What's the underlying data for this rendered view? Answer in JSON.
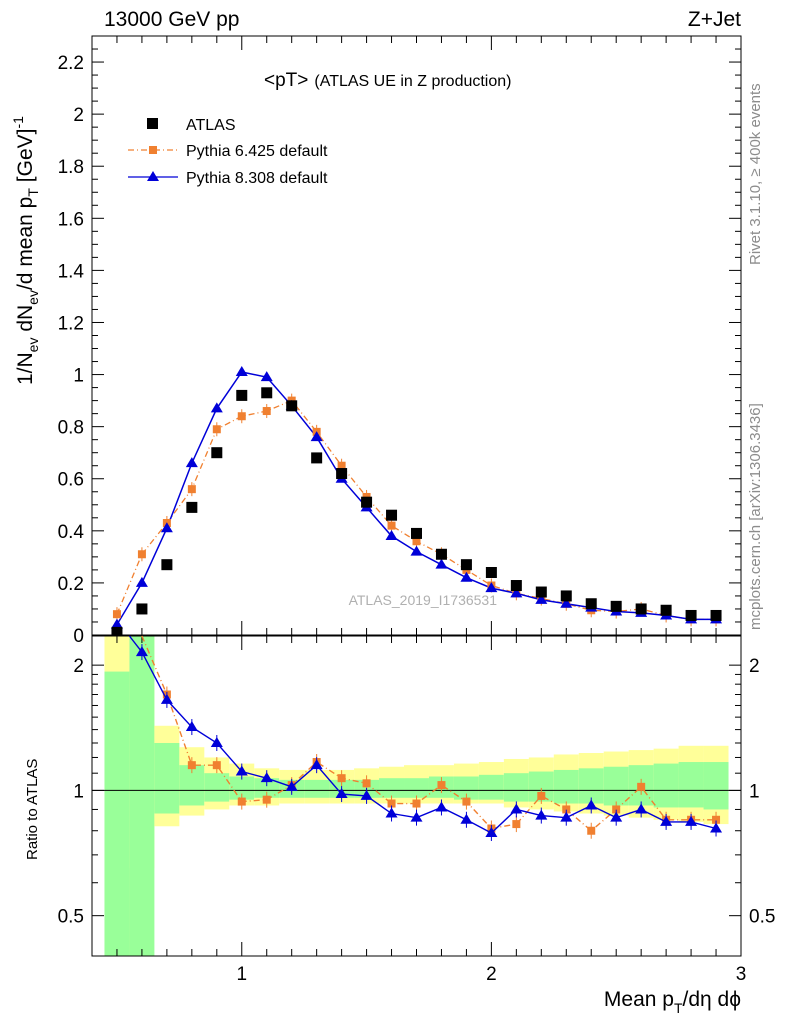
{
  "header": {
    "left": "13000 GeV pp",
    "right": "Z+Jet"
  },
  "plot_title": {
    "main": "<pT>",
    "sub": "(ATLAS UE in Z production)"
  },
  "side_labels": {
    "rivet": "Rivet 3.1.10, ≥ 400k events",
    "mcplots": "mcplots.cern.ch [arXiv:1306.3436]"
  },
  "watermark": "ATLAS_2019_I1736531",
  "axes": {
    "y_main_label": "1/N",
    "y_main_label_sub_ev": "ev",
    "y_main_label_mid": " dN",
    "y_main_label_mid2": "/d mean p",
    "y_main_label_sub_t": "T",
    "y_main_label_unit": " [GeV]",
    "y_main_label_sup": "-1",
    "y_ratio_label": "Ratio to ATLAS",
    "x_label_a": "Mean p",
    "x_label_sub": "T",
    "x_label_b": "/dη dϕ"
  },
  "colors": {
    "atlas": "#000000",
    "py6": "#f08030",
    "py8": "#0000d8",
    "band_inner": "#99ff99",
    "band_outer": "#ffff99"
  },
  "chart_data": {
    "type": "scatter",
    "x_range": [
      0.4,
      3.0
    ],
    "main": {
      "y_range": [
        0,
        2.3
      ],
      "y_ticks": [
        {
          "v": 0,
          "label": "0"
        },
        {
          "v": 0.2,
          "label": "0.2"
        },
        {
          "v": 0.4,
          "label": "0.4"
        },
        {
          "v": 0.6,
          "label": "0.6"
        },
        {
          "v": 0.8,
          "label": "0.8"
        },
        {
          "v": 1.0,
          "label": "1"
        },
        {
          "v": 1.2,
          "label": "1.2"
        },
        {
          "v": 1.4,
          "label": "1.4"
        },
        {
          "v": 1.6,
          "label": "1.6"
        },
        {
          "v": 1.8,
          "label": "1.8"
        },
        {
          "v": 2.0,
          "label": "2"
        },
        {
          "v": 2.2,
          "label": "2.2"
        }
      ]
    },
    "ratio": {
      "y_range": [
        0.4,
        2.35
      ],
      "log": true,
      "y_ticks": [
        {
          "v": 0.5,
          "label": "0.5"
        },
        {
          "v": 1,
          "label": "1"
        },
        {
          "v": 2,
          "label": "2"
        }
      ]
    },
    "x_ticks": [
      {
        "v": 1,
        "label": "1"
      },
      {
        "v": 2,
        "label": "2"
      },
      {
        "v": 3,
        "label": "3"
      }
    ],
    "series": [
      {
        "name": "ATLAS",
        "x": [
          0.5,
          0.6,
          0.7,
          0.8,
          0.9,
          1.0,
          1.1,
          1.2,
          1.3,
          1.4,
          1.5,
          1.6,
          1.7,
          1.8,
          1.9,
          2.0,
          2.1,
          2.2,
          2.3,
          2.4,
          2.5,
          2.6,
          2.7,
          2.8,
          2.9
        ],
        "y": [
          0.01,
          0.1,
          0.27,
          0.49,
          0.7,
          0.92,
          0.93,
          0.88,
          0.68,
          0.62,
          0.51,
          0.46,
          0.39,
          0.31,
          0.27,
          0.24,
          0.19,
          0.165,
          0.15,
          0.12,
          0.11,
          0.1,
          0.095,
          0.075,
          0.075
        ]
      },
      {
        "name": "Pythia 6.425 default",
        "x": [
          0.5,
          0.6,
          0.7,
          0.8,
          0.9,
          1.0,
          1.1,
          1.2,
          1.3,
          1.4,
          1.5,
          1.6,
          1.7,
          1.8,
          1.9,
          2.0,
          2.1,
          2.2,
          2.3,
          2.4,
          2.5,
          2.6,
          2.7,
          2.8,
          2.9
        ],
        "y": [
          0.08,
          0.31,
          0.43,
          0.56,
          0.79,
          0.84,
          0.86,
          0.9,
          0.78,
          0.65,
          0.53,
          0.42,
          0.36,
          0.31,
          0.25,
          0.19,
          0.16,
          0.14,
          0.12,
          0.095,
          0.09,
          0.1,
          0.075,
          0.06,
          0.06
        ]
      },
      {
        "name": "Pythia 8.308 default",
        "x": [
          0.5,
          0.6,
          0.7,
          0.8,
          0.9,
          1.0,
          1.1,
          1.2,
          1.3,
          1.4,
          1.5,
          1.6,
          1.7,
          1.8,
          1.9,
          2.0,
          2.1,
          2.2,
          2.3,
          2.4,
          2.5,
          2.6,
          2.7,
          2.8,
          2.9
        ],
        "y": [
          0.04,
          0.2,
          0.41,
          0.66,
          0.87,
          1.01,
          0.99,
          0.88,
          0.76,
          0.6,
          0.49,
          0.38,
          0.32,
          0.27,
          0.22,
          0.18,
          0.16,
          0.135,
          0.12,
          0.105,
          0.09,
          0.085,
          0.075,
          0.06,
          0.06
        ]
      }
    ],
    "ratios": [
      {
        "name": "Pythia 6.425 default",
        "y": [
          null,
          null,
          1.7,
          1.15,
          1.15,
          0.94,
          0.95,
          1.03,
          1.17,
          1.07,
          1.04,
          0.93,
          0.93,
          1.03,
          0.94,
          0.81,
          0.83,
          0.97,
          0.9,
          0.8,
          0.9,
          1.02,
          0.85,
          0.85,
          0.85
        ]
      },
      {
        "name": "Pythia 8.308 default",
        "y": [
          null,
          2.15,
          1.65,
          1.42,
          1.3,
          1.11,
          1.07,
          1.02,
          1.15,
          0.98,
          0.97,
          0.88,
          0.86,
          0.91,
          0.85,
          0.79,
          0.9,
          0.87,
          0.86,
          0.92,
          0.86,
          0.9,
          0.84,
          0.84,
          0.81
        ]
      }
    ],
    "bands": {
      "x_edges": [
        0.45,
        0.55,
        0.65,
        0.75,
        0.85,
        0.95,
        1.05,
        1.15,
        1.25,
        1.35,
        1.45,
        1.55,
        1.65,
        1.75,
        1.85,
        1.95,
        2.05,
        2.15,
        2.25,
        2.35,
        2.45,
        2.55,
        2.65,
        2.75,
        2.85,
        2.95
      ],
      "outer_lo": [
        0.4,
        0.65,
        0.82,
        0.87,
        0.9,
        0.92,
        0.92,
        0.93,
        0.93,
        0.93,
        0.93,
        0.93,
        0.93,
        0.93,
        0.93,
        0.93,
        0.91,
        0.9,
        0.89,
        0.88,
        0.87,
        0.86,
        0.85,
        0.84,
        0.83
      ],
      "outer_hi": [
        2.35,
        2.35,
        1.43,
        1.27,
        1.2,
        1.16,
        1.13,
        1.12,
        1.12,
        1.12,
        1.13,
        1.14,
        1.15,
        1.15,
        1.16,
        1.17,
        1.19,
        1.2,
        1.22,
        1.23,
        1.24,
        1.25,
        1.26,
        1.28,
        1.28
      ],
      "inner_lo": [
        0.4,
        0.4,
        0.88,
        0.92,
        0.94,
        0.95,
        0.96,
        0.96,
        0.96,
        0.96,
        0.96,
        0.96,
        0.96,
        0.96,
        0.95,
        0.95,
        0.94,
        0.94,
        0.93,
        0.93,
        0.92,
        0.92,
        0.91,
        0.91,
        0.9
      ],
      "inner_hi": [
        1.93,
        2.35,
        1.3,
        1.15,
        1.1,
        1.08,
        1.07,
        1.06,
        1.06,
        1.06,
        1.06,
        1.07,
        1.07,
        1.08,
        1.08,
        1.09,
        1.1,
        1.11,
        1.12,
        1.13,
        1.14,
        1.15,
        1.16,
        1.17,
        1.17
      ]
    }
  }
}
